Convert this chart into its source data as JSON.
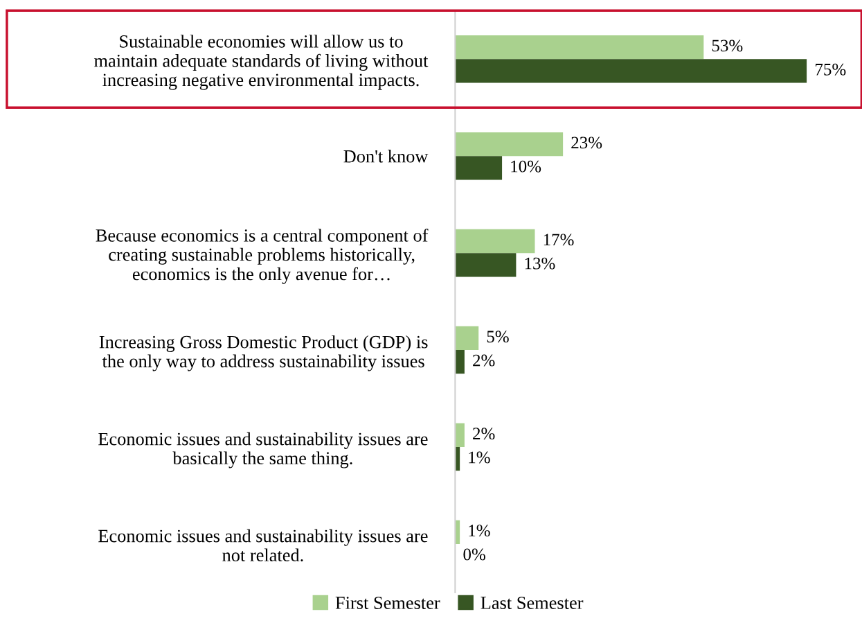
{
  "chart_data": {
    "type": "bar",
    "orientation": "horizontal",
    "categories": [
      "Sustainable economies will allow us to\nmaintain adequate standards of living without\nincreasing negative environmental impacts.",
      "Don't know",
      "Because economics is a central component of\ncreating sustainable problems historically,\neconomics is the only avenue for…",
      "Increasing Gross Domestic Product (GDP) is\nthe only way to address sustainability issues",
      "Economic issues and sustainability issues are\nbasically the same thing.",
      "Economic issues and sustainability issues are\nnot related."
    ],
    "series": [
      {
        "name": "First Semester",
        "color": "#a9d18e",
        "values": [
          53,
          23,
          17,
          5,
          2,
          1
        ],
        "value_labels": [
          "53%",
          "23%",
          "17%",
          "5%",
          "2%",
          "1%"
        ]
      },
      {
        "name": "Last Semester",
        "color": "#375623",
        "values": [
          75,
          10,
          13,
          2,
          1,
          0
        ],
        "value_labels": [
          "75%",
          "10%",
          "13%",
          "2%",
          "1%",
          "0%"
        ]
      }
    ],
    "tick_labels": "y",
    "grid": false,
    "legend": "bottom"
  }
}
